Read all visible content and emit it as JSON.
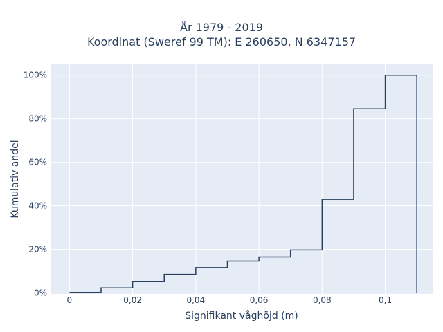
{
  "chart_data": {
    "type": "line",
    "subtype": "cumulative-step",
    "title_line1": "År 1979 - 2019",
    "title_line2": "Koordinat (Sweref 99 TM): E 260650, N 6347157",
    "xlabel": "Signifikant våghöjd (m)",
    "ylabel": "Kumulativ andel",
    "xlim": [
      -0.006,
      0.115
    ],
    "ylim": [
      -0.5,
      105
    ],
    "x_ticks": [
      0,
      0.02,
      0.04,
      0.06,
      0.08,
      0.1
    ],
    "x_tick_labels": [
      "0",
      "0,02",
      "0,04",
      "0,06",
      "0,08",
      "0,1"
    ],
    "y_ticks": [
      0,
      20,
      40,
      60,
      80,
      100
    ],
    "y_tick_labels": [
      "0%",
      "20%",
      "40%",
      "60%",
      "80%",
      "100%"
    ],
    "grid": true,
    "bins": [
      {
        "x0": 0.0,
        "x1": 0.01,
        "y": 0.2
      },
      {
        "x0": 0.01,
        "x1": 0.02,
        "y": 2.3
      },
      {
        "x0": 0.02,
        "x1": 0.03,
        "y": 5.3
      },
      {
        "x0": 0.03,
        "x1": 0.04,
        "y": 8.5
      },
      {
        "x0": 0.04,
        "x1": 0.05,
        "y": 11.6
      },
      {
        "x0": 0.05,
        "x1": 0.06,
        "y": 14.6
      },
      {
        "x0": 0.06,
        "x1": 0.07,
        "y": 16.5
      },
      {
        "x0": 0.07,
        "x1": 0.08,
        "y": 19.7
      },
      {
        "x0": 0.08,
        "x1": 0.09,
        "y": 43.0
      },
      {
        "x0": 0.09,
        "x1": 0.1,
        "y": 84.6
      },
      {
        "x0": 0.1,
        "x1": 0.11,
        "y": 100.0
      }
    ],
    "colors": {
      "plot_bg": "#e5ecf6",
      "grid": "#ffffff",
      "line": "#2a3f5f",
      "text": "#2a3f5f"
    }
  }
}
